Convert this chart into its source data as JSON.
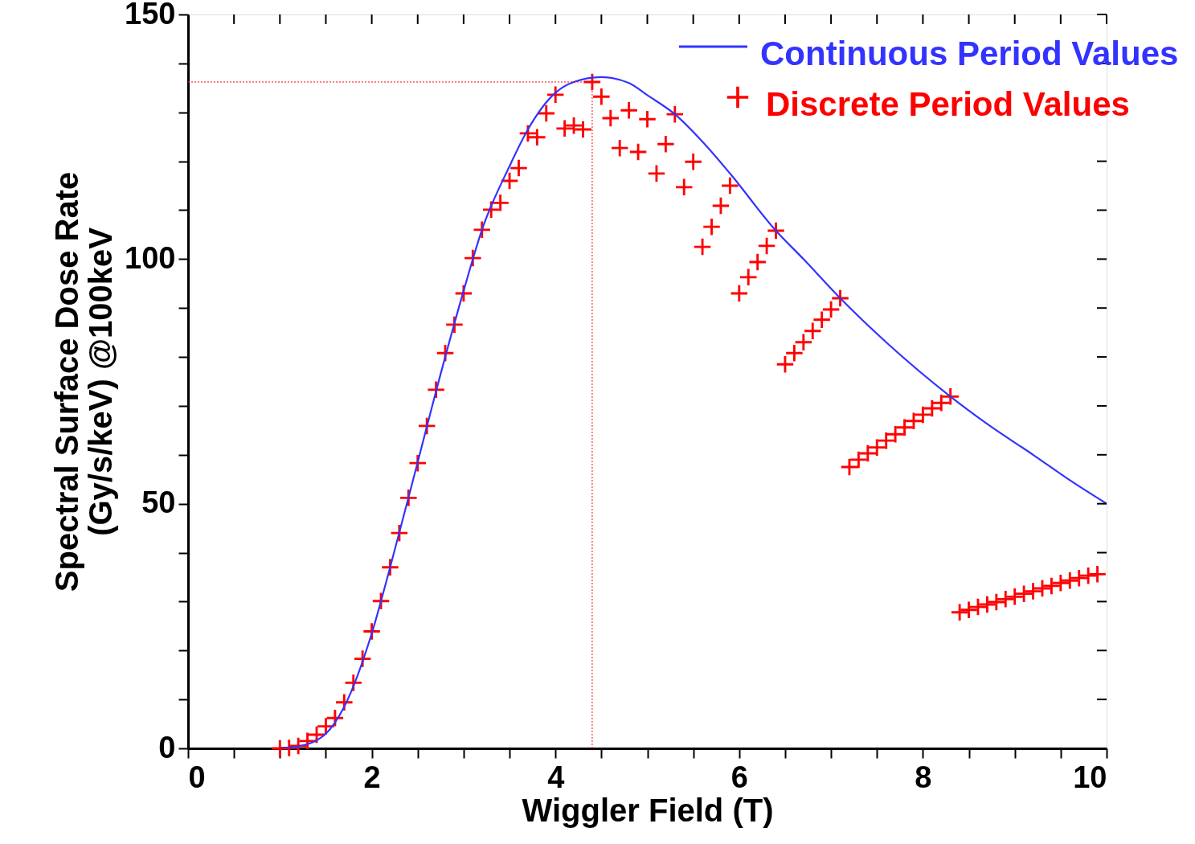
{
  "chart_data": {
    "type": "scatter",
    "xlabel": "Wiggler Field (T)",
    "ylabel": "Spectral Surface Dose Rate\n(Gy/s/keV) @100keV",
    "xlim": [
      0,
      10
    ],
    "ylim": [
      0,
      150
    ],
    "xticks": [
      0,
      {
        "value": 0.5,
        "label": null
      },
      {
        "value": 1,
        "label": null
      },
      {
        "value": 1.5,
        "label": null
      },
      2,
      {
        "value": 2.5,
        "label": null
      },
      {
        "value": 3,
        "label": null
      },
      {
        "value": 3.5,
        "label": null
      },
      4,
      {
        "value": 4.5,
        "label": null
      },
      {
        "value": 5,
        "label": null
      },
      {
        "value": 5.5,
        "label": null
      },
      6,
      {
        "value": 6.5,
        "label": null
      },
      {
        "value": 7,
        "label": null
      },
      {
        "value": 7.5,
        "label": null
      },
      8,
      {
        "value": 8.5,
        "label": null
      },
      {
        "value": 9,
        "label": null
      },
      {
        "value": 9.5,
        "label": null
      },
      10
    ],
    "yticks": [
      0,
      {
        "value": 10,
        "label": null
      },
      {
        "value": 20,
        "label": null
      },
      {
        "value": 30,
        "label": null
      },
      {
        "value": 40,
        "label": null
      },
      50,
      {
        "value": 60,
        "label": null
      },
      {
        "value": 70,
        "label": null
      },
      {
        "value": 80,
        "label": null
      },
      {
        "value": 90,
        "label": null
      },
      100,
      {
        "value": 110,
        "label": null
      },
      {
        "value": 120,
        "label": null
      },
      {
        "value": 130,
        "label": null
      },
      {
        "value": 140,
        "label": null
      },
      150
    ],
    "grid": false,
    "legend": "top right",
    "series": [
      {
        "name": "Continuous Period Values",
        "type": "line",
        "color": "#3333ff",
        "line_style": "solid",
        "marker": "none",
        "x": [
          1.0,
          1.2,
          1.5,
          1.7,
          2.0,
          2.2,
          2.5,
          2.7,
          3.0,
          3.2,
          3.5,
          3.7,
          4.0,
          4.2,
          4.5,
          4.8,
          5.0,
          5.3,
          5.6,
          5.9,
          6.4,
          6.7,
          7.1,
          7.6,
          8.3,
          8.7,
          9.2,
          9.6,
          10.0
        ],
        "values": [
          0,
          0.4,
          3,
          8.5,
          23.5,
          37,
          58.5,
          73,
          93.5,
          106,
          119,
          126.5,
          134,
          136.2,
          137.2,
          136,
          133.5,
          129.6,
          124,
          117.5,
          105.8,
          100,
          92,
          83,
          71.9,
          66.3,
          60,
          54.8,
          50
        ]
      },
      {
        "name": "Discrete Period Values",
        "color": "#ff0000",
        "marker": "cross",
        "x": [
          1.0,
          1.1,
          1.2,
          1.3,
          1.4,
          1.5,
          1.6,
          1.7,
          1.8,
          1.9,
          2.0,
          2.1,
          2.2,
          2.3,
          2.4,
          2.5,
          2.6,
          2.7,
          2.8,
          2.9,
          3.0,
          3.1,
          3.2,
          3.3,
          3.4,
          3.5,
          3.6,
          3.7,
          3.8,
          3.9,
          4.0,
          4.1,
          4.2,
          4.3,
          4.4,
          4.5,
          4.6,
          4.7,
          4.8,
          4.9,
          5.0,
          5.1,
          5.2,
          5.3,
          5.4,
          5.5,
          5.6,
          5.7,
          5.8,
          5.9,
          6.0,
          6.1,
          6.2,
          6.3,
          6.4,
          6.5,
          6.6,
          6.7,
          6.8,
          6.9,
          7.0,
          7.1,
          7.2,
          7.3,
          7.4,
          7.5,
          7.6,
          7.7,
          7.8,
          7.9,
          8.0,
          8.1,
          8.2,
          8.3,
          8.4,
          8.5,
          8.6,
          8.7,
          8.8,
          8.9,
          9.0,
          9.1,
          9.2,
          9.3,
          9.4,
          9.5,
          9.6,
          9.7,
          9.8,
          9.9
        ],
        "values": [
          0,
          0.1,
          0.5,
          1.5,
          2.8,
          4.5,
          6.2,
          9.4,
          13.4,
          18.3,
          23.9,
          30.1,
          37,
          44,
          51.2,
          58.3,
          65.9,
          73.3,
          80.8,
          86.6,
          93,
          100.2,
          106,
          110.1,
          111.5,
          116,
          118.6,
          125.7,
          124.9,
          129.8,
          133.6,
          126.7,
          127.3,
          126.5,
          136.2,
          133.2,
          128.8,
          122.7,
          130.4,
          121.9,
          128.6,
          117.5,
          123.5,
          129.6,
          114.7,
          119.9,
          102.5,
          106.6,
          110.9,
          115,
          93,
          96.3,
          99.4,
          102.7,
          105.8,
          78.5,
          80.8,
          83,
          85.3,
          87.6,
          89.7,
          92,
          57.5,
          59,
          60.3,
          61.5,
          62.9,
          64.2,
          65.6,
          66.9,
          68.2,
          69.5,
          70.6,
          71.9,
          27.8,
          28.3,
          28.9,
          29.4,
          29.9,
          30.5,
          31,
          31.6,
          32.1,
          32.7,
          33.2,
          33.8,
          34.3,
          34.8,
          35.3,
          35.6
        ]
      }
    ],
    "ref_lines": [
      {
        "axis": "y",
        "value": 136.2,
        "color": "#ff0000",
        "line_style": "dotted"
      },
      {
        "axis": "x",
        "value": 4.4,
        "color": "#ff0000",
        "line_style": "dotted"
      }
    ]
  }
}
